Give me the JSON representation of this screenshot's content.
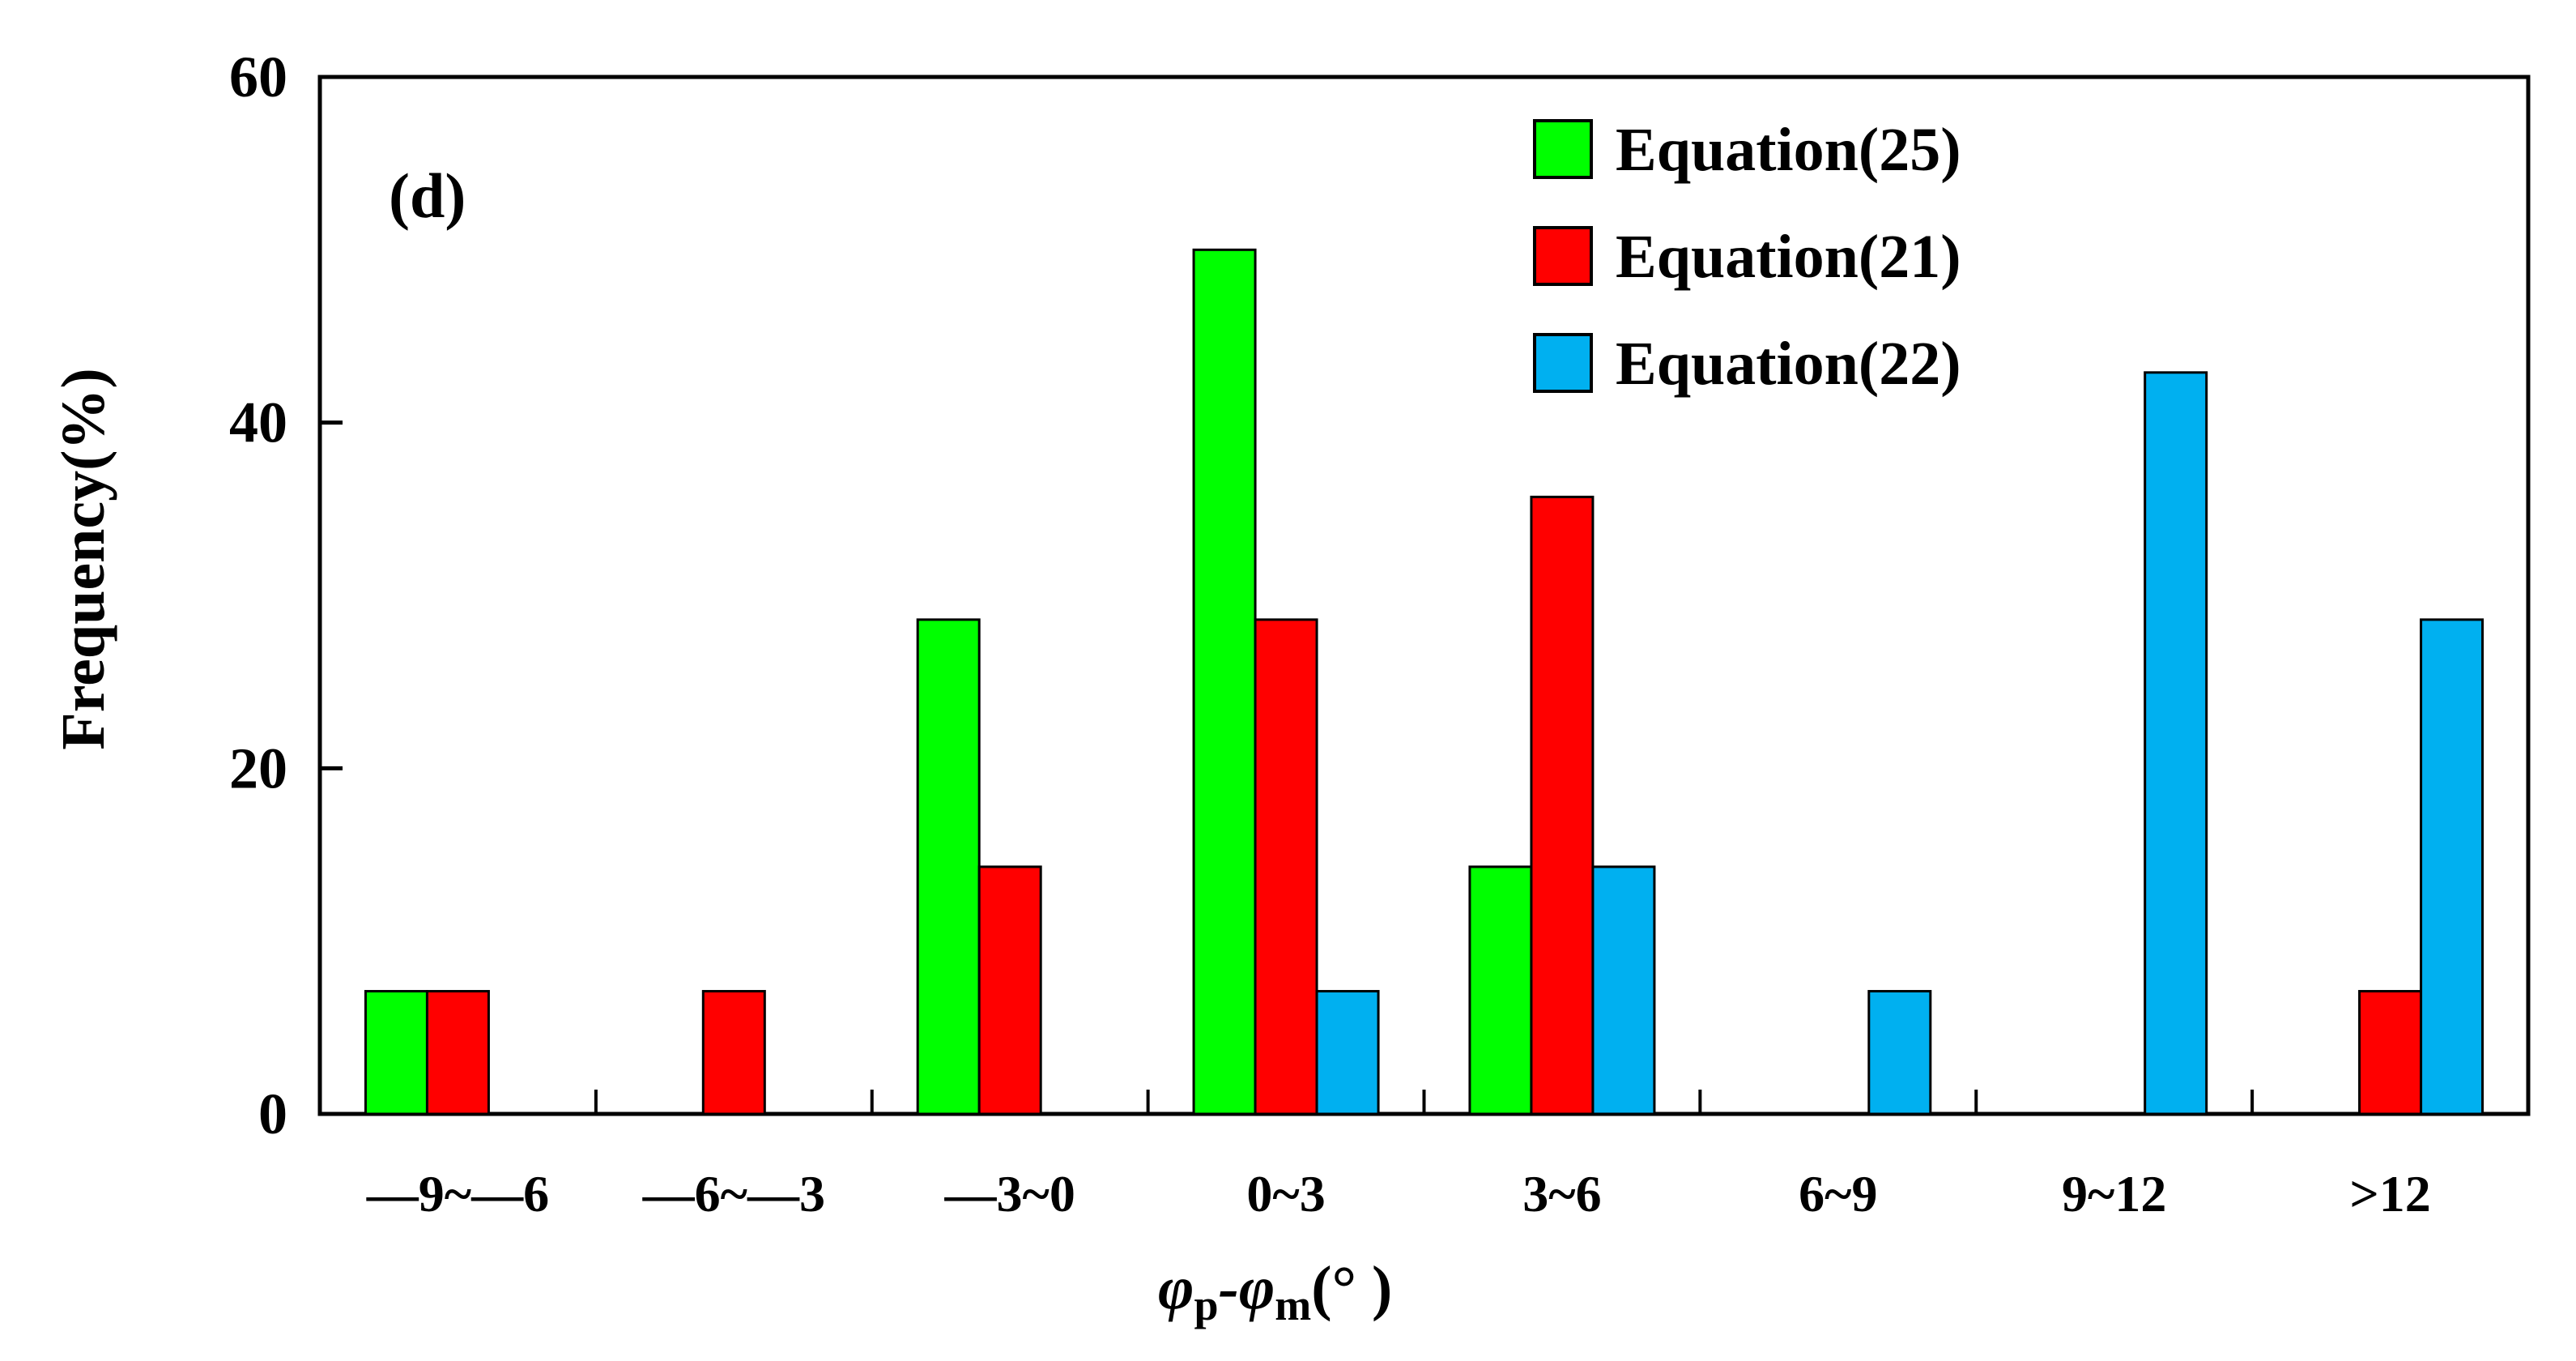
{
  "chart_data": {
    "type": "bar",
    "panel_label": "(d)",
    "panel_label_color": "#ff0000",
    "xlabel": {
      "main": "φ",
      "sub1": "p",
      "mid": "-φ",
      "sub2": "m",
      "tail": "(°  )"
    },
    "ylabel": "Frequency(%)",
    "ylim": [
      0,
      60
    ],
    "yticks": [
      0,
      20,
      40,
      60
    ],
    "categories": [
      "—9~—6",
      "—6~—3",
      "—3~0",
      "0~3",
      "3~6",
      "6~9",
      "9~12",
      ">12"
    ],
    "series": [
      {
        "name": "Equation(25)",
        "color": "#00ff00",
        "values": [
          7.1,
          0,
          28.6,
          50.0,
          14.3,
          0,
          0,
          0
        ]
      },
      {
        "name": "Equation(21)",
        "color": "#ff0000",
        "values": [
          7.1,
          7.1,
          14.3,
          28.6,
          35.7,
          0,
          0,
          7.1
        ]
      },
      {
        "name": "Equation(22)",
        "color": "#00b0f0",
        "values": [
          0,
          0,
          0,
          7.1,
          14.3,
          7.1,
          42.9,
          28.6
        ]
      }
    ],
    "legend_position": "top-right",
    "grid": false
  }
}
